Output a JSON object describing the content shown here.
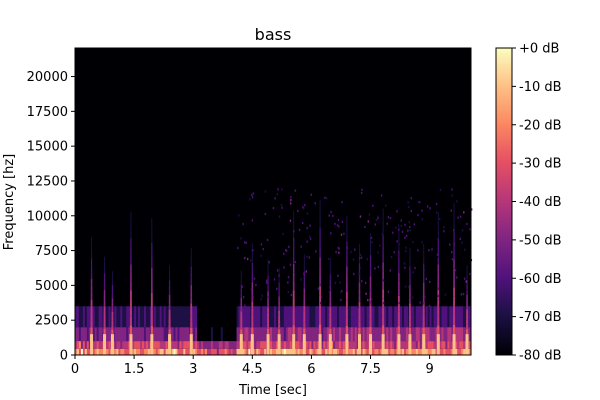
{
  "chart_data": {
    "type": "heatmap",
    "title": "bass",
    "xlabel": "Time [sec]",
    "ylabel": "Frequency [hz]",
    "xlim": [
      0,
      10.05
    ],
    "ylim": [
      0,
      22050
    ],
    "x_ticks": [
      0,
      1.5,
      3,
      4.5,
      6,
      7.5,
      9
    ],
    "x_tick_labels": [
      "0",
      "1.5",
      "3",
      "4.5",
      "6",
      "7.5",
      "9"
    ],
    "y_ticks": [
      0,
      2500,
      5000,
      7500,
      10000,
      12500,
      15000,
      17500,
      20000
    ],
    "y_tick_labels": [
      "0",
      "2500",
      "5000",
      "7500",
      "10000",
      "12500",
      "15000",
      "17500",
      "20000"
    ],
    "colormap": "magma",
    "colorbar": {
      "range_db": [
        -80,
        0
      ],
      "ticks": [
        0,
        -10,
        -20,
        -30,
        -40,
        -50,
        -60,
        -70,
        -80
      ],
      "tick_labels": [
        "+0 dB",
        "-10 dB",
        "-20 dB",
        "-30 dB",
        "-40 dB",
        "-50 dB",
        "-60 dB",
        "-70 dB",
        "-80 dB"
      ]
    },
    "onsets_sec": [
      0.42,
      0.75,
      0.95,
      1.42,
      1.95,
      2.4,
      2.95,
      4.22,
      4.5,
      4.9,
      5.18,
      5.55,
      5.82,
      6.22,
      6.48,
      6.9,
      7.22,
      7.5,
      7.82,
      8.22,
      8.5,
      8.85,
      9.22,
      9.62,
      9.95
    ],
    "silent_band_sec": [
      3.05,
      4.08
    ],
    "colors": {
      "background": "#000004",
      "axes": "#000000"
    }
  }
}
